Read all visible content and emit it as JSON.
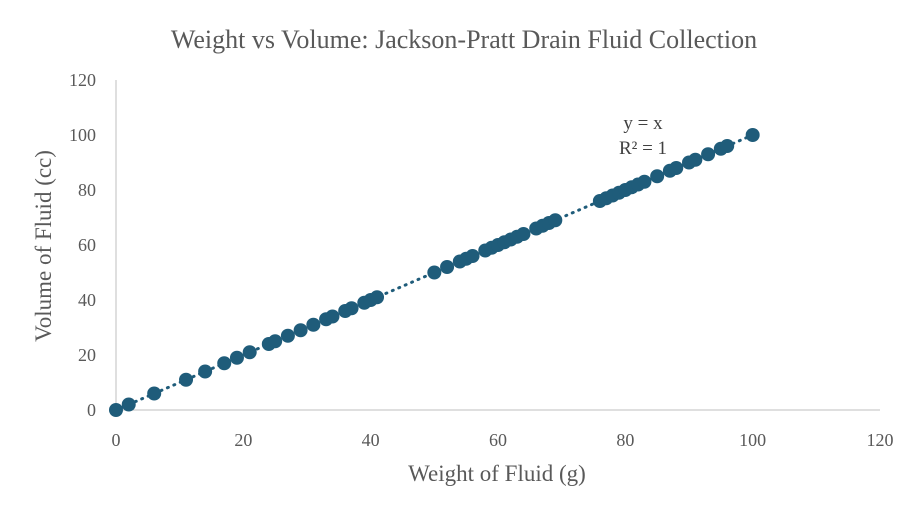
{
  "chart_data": {
    "type": "scatter",
    "title": "Weight vs Volume: Jackson-Pratt Drain Fluid Collection",
    "xlabel": "Weight of Fluid (g)",
    "ylabel": "Volume of Fluid (cc)",
    "xlim": [
      0,
      120
    ],
    "ylim": [
      0,
      120
    ],
    "xticks": [
      "0",
      "20",
      "40",
      "60",
      "80",
      "100",
      "120"
    ],
    "yticks": [
      "0",
      "20",
      "40",
      "60",
      "80",
      "100",
      "120"
    ],
    "grid": false,
    "marker_color": "#1F5C7A",
    "trendline": {
      "type": "linear",
      "style": "dotted",
      "equation": "y = x",
      "r_squared": "R² = 1",
      "x_range": [
        0,
        100
      ]
    },
    "points": [
      {
        "x": 0,
        "y": 0
      },
      {
        "x": 2,
        "y": 2
      },
      {
        "x": 6,
        "y": 6
      },
      {
        "x": 11,
        "y": 11
      },
      {
        "x": 14,
        "y": 14
      },
      {
        "x": 17,
        "y": 17
      },
      {
        "x": 19,
        "y": 19
      },
      {
        "x": 21,
        "y": 21
      },
      {
        "x": 24,
        "y": 24
      },
      {
        "x": 25,
        "y": 25
      },
      {
        "x": 27,
        "y": 27
      },
      {
        "x": 29,
        "y": 29
      },
      {
        "x": 31,
        "y": 31
      },
      {
        "x": 33,
        "y": 33
      },
      {
        "x": 34,
        "y": 34
      },
      {
        "x": 36,
        "y": 36
      },
      {
        "x": 37,
        "y": 37
      },
      {
        "x": 39,
        "y": 39
      },
      {
        "x": 40,
        "y": 40
      },
      {
        "x": 41,
        "y": 41
      },
      {
        "x": 50,
        "y": 50
      },
      {
        "x": 52,
        "y": 52
      },
      {
        "x": 54,
        "y": 54
      },
      {
        "x": 55,
        "y": 55
      },
      {
        "x": 56,
        "y": 56
      },
      {
        "x": 58,
        "y": 58
      },
      {
        "x": 59,
        "y": 59
      },
      {
        "x": 60,
        "y": 60
      },
      {
        "x": 61,
        "y": 61
      },
      {
        "x": 62,
        "y": 62
      },
      {
        "x": 63,
        "y": 63
      },
      {
        "x": 64,
        "y": 64
      },
      {
        "x": 66,
        "y": 66
      },
      {
        "x": 67,
        "y": 67
      },
      {
        "x": 68,
        "y": 68
      },
      {
        "x": 69,
        "y": 69
      },
      {
        "x": 76,
        "y": 76
      },
      {
        "x": 77,
        "y": 77
      },
      {
        "x": 78,
        "y": 78
      },
      {
        "x": 79,
        "y": 79
      },
      {
        "x": 80,
        "y": 80
      },
      {
        "x": 81,
        "y": 81
      },
      {
        "x": 82,
        "y": 82
      },
      {
        "x": 83,
        "y": 83
      },
      {
        "x": 85,
        "y": 85
      },
      {
        "x": 87,
        "y": 87
      },
      {
        "x": 88,
        "y": 88
      },
      {
        "x": 90,
        "y": 90
      },
      {
        "x": 91,
        "y": 91
      },
      {
        "x": 93,
        "y": 93
      },
      {
        "x": 95,
        "y": 95
      },
      {
        "x": 96,
        "y": 96
      },
      {
        "x": 100,
        "y": 100
      }
    ]
  }
}
